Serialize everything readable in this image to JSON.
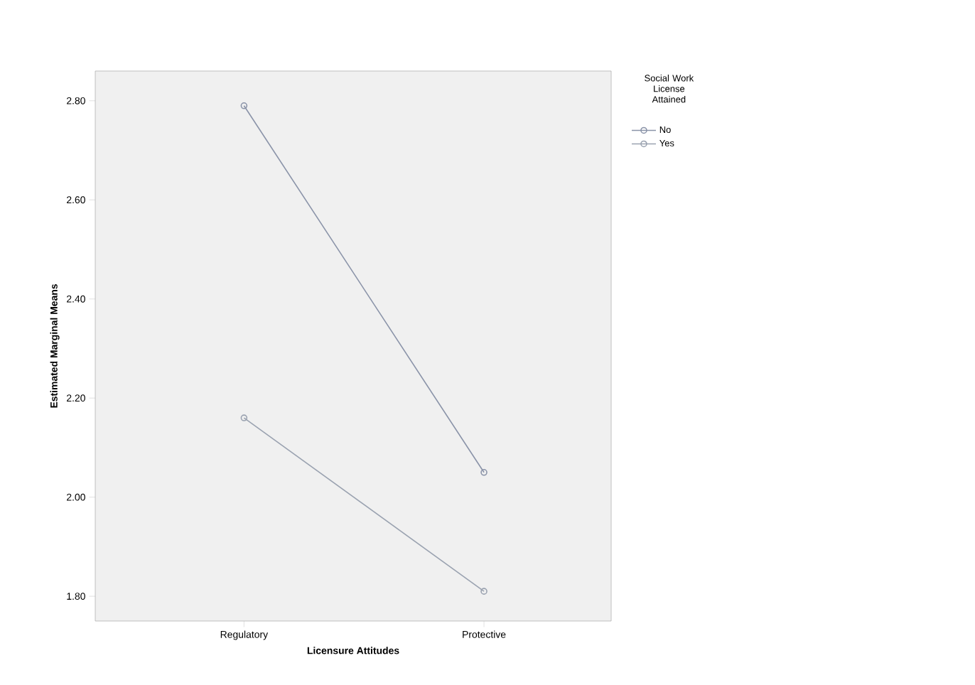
{
  "chart_data": {
    "type": "line",
    "xlabel": "Licensure Attitudes",
    "ylabel": "Estimated Marginal Means",
    "legend_title": "Social Work License Attained",
    "categories": [
      "Regulatory",
      "Protective"
    ],
    "series": [
      {
        "name": "No",
        "color": "#8a93a8",
        "values": [
          2.79,
          2.05
        ]
      },
      {
        "name": "Yes",
        "color": "#9aa2b0",
        "values": [
          2.16,
          1.81
        ]
      }
    ],
    "ylim": [
      1.75,
      2.86
    ],
    "yticks": [
      {
        "value": 1.8,
        "label": "1.80"
      },
      {
        "value": 2.0,
        "label": "2.00"
      },
      {
        "value": 2.2,
        "label": "2.20"
      },
      {
        "value": 2.4,
        "label": "2.40"
      },
      {
        "value": 2.6,
        "label": "2.60"
      },
      {
        "value": 2.8,
        "label": "2.80"
      }
    ],
    "grid": false,
    "legend": "top right",
    "marker": "circle",
    "line_style": "solid"
  }
}
